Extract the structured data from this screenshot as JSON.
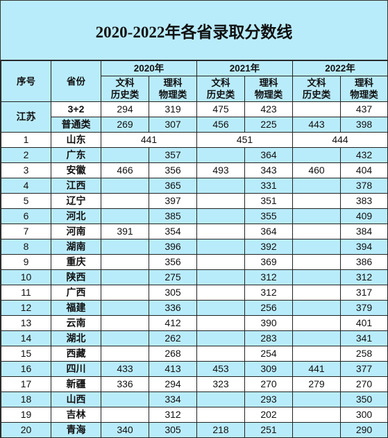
{
  "title": "2020-2022年各省录取分数线",
  "headers": {
    "seq": "序号",
    "province": "省份",
    "years": [
      "2020年",
      "2021年",
      "2022年"
    ],
    "arts": [
      "文科",
      "历史类"
    ],
    "science": [
      "理科",
      "物理类"
    ]
  },
  "jiangsu": {
    "province": "江苏",
    "rows": [
      {
        "type": "3+2",
        "values": [
          "294",
          "319",
          "475",
          "423",
          "",
          "437"
        ]
      },
      {
        "type": "普通类",
        "values": [
          "269",
          "307",
          "456",
          "225",
          "443",
          "398"
        ]
      }
    ]
  },
  "rows": [
    {
      "seq": "1",
      "province": "山东",
      "merged": [
        "441",
        "451",
        "444"
      ]
    },
    {
      "seq": "2",
      "province": "广东",
      "values": [
        "",
        "357",
        "",
        "364",
        "",
        "432"
      ]
    },
    {
      "seq": "3",
      "province": "安徽",
      "values": [
        "466",
        "356",
        "493",
        "343",
        "460",
        "404"
      ]
    },
    {
      "seq": "4",
      "province": "江西",
      "values": [
        "",
        "365",
        "",
        "331",
        "",
        "378"
      ]
    },
    {
      "seq": "5",
      "province": "辽宁",
      "values": [
        "",
        "397",
        "",
        "351",
        "",
        "383"
      ]
    },
    {
      "seq": "6",
      "province": "河北",
      "values": [
        "",
        "385",
        "",
        "355",
        "",
        "409"
      ]
    },
    {
      "seq": "7",
      "province": "河南",
      "values": [
        "391",
        "354",
        "",
        "364",
        "",
        "384"
      ]
    },
    {
      "seq": "8",
      "province": "湖南",
      "values": [
        "",
        "396",
        "",
        "392",
        "",
        "394"
      ]
    },
    {
      "seq": "9",
      "province": "重庆",
      "values": [
        "",
        "356",
        "",
        "369",
        "",
        "386"
      ]
    },
    {
      "seq": "10",
      "province": "陕西",
      "values": [
        "",
        "275",
        "",
        "312",
        "",
        "312"
      ]
    },
    {
      "seq": "11",
      "province": "广西",
      "values": [
        "",
        "305",
        "",
        "312",
        "",
        "317"
      ]
    },
    {
      "seq": "12",
      "province": "福建",
      "values": [
        "",
        "336",
        "",
        "256",
        "",
        "379"
      ]
    },
    {
      "seq": "13",
      "province": "云南",
      "values": [
        "",
        "412",
        "",
        "390",
        "",
        "401"
      ]
    },
    {
      "seq": "14",
      "province": "湖北",
      "values": [
        "",
        "262",
        "",
        "283",
        "",
        "341"
      ]
    },
    {
      "seq": "15",
      "province": "西藏",
      "values": [
        "",
        "268",
        "",
        "254",
        "",
        "258"
      ]
    },
    {
      "seq": "16",
      "province": "四川",
      "values": [
        "433",
        "413",
        "453",
        "309",
        "441",
        "377"
      ]
    },
    {
      "seq": "17",
      "province": "新疆",
      "values": [
        "336",
        "294",
        "323",
        "270",
        "279",
        "270"
      ]
    },
    {
      "seq": "18",
      "province": "山西",
      "values": [
        "",
        "334",
        "",
        "293",
        "",
        "350"
      ]
    },
    {
      "seq": "19",
      "province": "吉林",
      "values": [
        "",
        "312",
        "",
        "202",
        "",
        "300"
      ]
    },
    {
      "seq": "20",
      "province": "青海",
      "values": [
        "340",
        "305",
        "218",
        "251",
        "",
        "290"
      ]
    }
  ],
  "colors": {
    "header_blue": "#b9ecfb",
    "white": "#ffffff",
    "border": "#222222"
  }
}
